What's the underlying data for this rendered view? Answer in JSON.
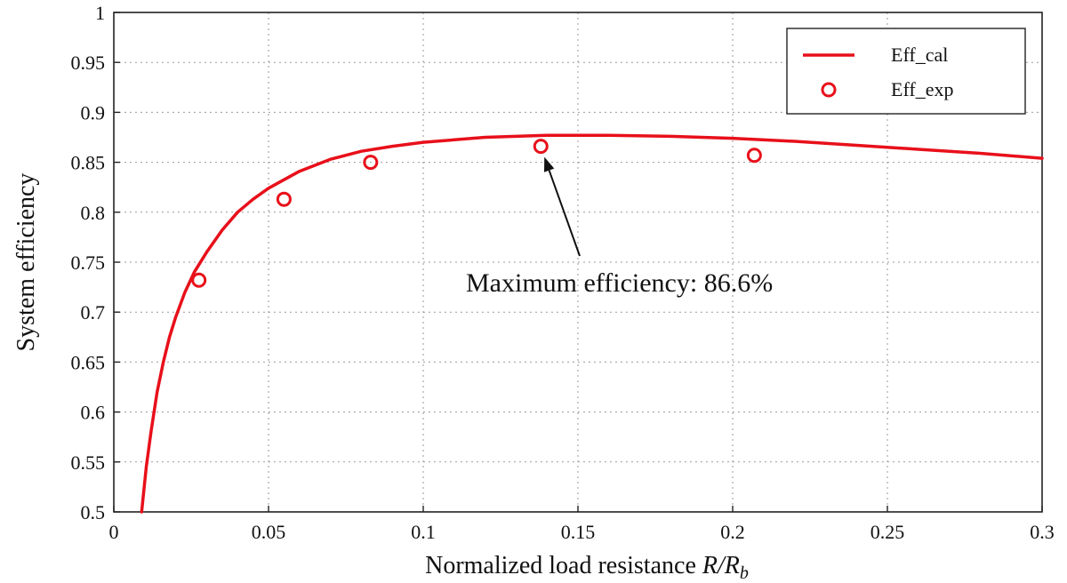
{
  "chart_data": {
    "type": "line",
    "xlabel_main": "Normalized load resistance ",
    "xlabel_var1": "R",
    "xlabel_slash": "/",
    "xlabel_var2": "R",
    "xlabel_sub": "b",
    "ylabel": "System efficiency",
    "xlim": [
      0,
      0.3
    ],
    "ylim": [
      0.5,
      1
    ],
    "xticks": [
      "0",
      "0.05",
      "0.1",
      "0.15",
      "0.2",
      "0.25",
      "0.3"
    ],
    "yticks": [
      "0.5",
      "0.55",
      "0.6",
      "0.65",
      "0.7",
      "0.75",
      "0.8",
      "0.85",
      "0.9",
      "0.95",
      "1"
    ],
    "grid": true,
    "legend_position": "top-right",
    "color": "#e8101a",
    "series": [
      {
        "name": "Eff_cal",
        "kind": "line",
        "x": [
          0.009,
          0.0105,
          0.012,
          0.014,
          0.016,
          0.018,
          0.02,
          0.023,
          0.026,
          0.03,
          0.035,
          0.04,
          0.045,
          0.05,
          0.06,
          0.07,
          0.08,
          0.09,
          0.1,
          0.12,
          0.14,
          0.16,
          0.18,
          0.2,
          0.22,
          0.24,
          0.26,
          0.28,
          0.3
        ],
        "y": [
          0.5,
          0.545,
          0.58,
          0.62,
          0.65,
          0.675,
          0.695,
          0.72,
          0.74,
          0.76,
          0.782,
          0.8,
          0.813,
          0.824,
          0.841,
          0.853,
          0.861,
          0.866,
          0.87,
          0.875,
          0.877,
          0.877,
          0.876,
          0.874,
          0.871,
          0.867,
          0.863,
          0.859,
          0.854
        ]
      },
      {
        "name": "Eff_exp",
        "kind": "scatter",
        "x": [
          0.0275,
          0.055,
          0.083,
          0.138,
          0.207
        ],
        "y": [
          0.732,
          0.813,
          0.85,
          0.866,
          0.857
        ]
      }
    ],
    "annotation": {
      "text": "Maximum efficiency: 86.6%",
      "x": 0.138,
      "y": 0.866
    }
  }
}
